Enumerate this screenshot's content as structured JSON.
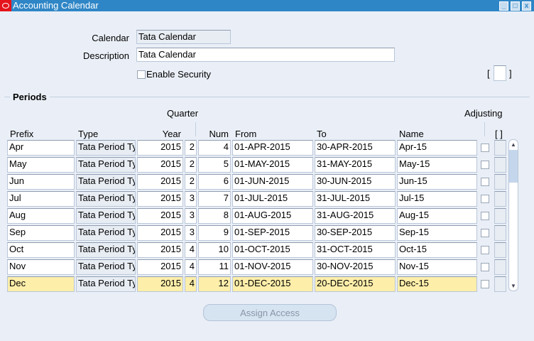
{
  "window": {
    "title": "Accounting Calendar",
    "minimize": "_",
    "maximize": "□",
    "close": "x"
  },
  "header": {
    "calendar_label": "Calendar",
    "calendar_value": "Tata Calendar",
    "description_label": "Description",
    "description_value": "Tata Calendar",
    "enable_security_label": "Enable Security",
    "enable_security_checked": false,
    "flex_open": "[",
    "flex_close": "]"
  },
  "periods": {
    "section_title": "Periods",
    "columns": {
      "prefix": "Prefix",
      "type": "Type",
      "year": "Year",
      "quarter": "Quarter",
      "num": "Num",
      "from": "From",
      "to": "To",
      "name": "Name",
      "adjusting": "Adjusting",
      "flex": "[ ]"
    },
    "rows": [
      {
        "prefix": "Apr",
        "type": "Tata Period Ty",
        "year": "2015",
        "quarter": "2",
        "num": "4",
        "from": "01-APR-2015",
        "to": "30-APR-2015",
        "name": "Apr-15",
        "adjusting": false
      },
      {
        "prefix": "May",
        "type": "Tata Period Ty",
        "year": "2015",
        "quarter": "2",
        "num": "5",
        "from": "01-MAY-2015",
        "to": "31-MAY-2015",
        "name": "May-15",
        "adjusting": false
      },
      {
        "prefix": "Jun",
        "type": "Tata Period Ty",
        "year": "2015",
        "quarter": "2",
        "num": "6",
        "from": "01-JUN-2015",
        "to": "30-JUN-2015",
        "name": "Jun-15",
        "adjusting": false
      },
      {
        "prefix": "Jul",
        "type": "Tata Period Ty",
        "year": "2015",
        "quarter": "3",
        "num": "7",
        "from": "01-JUL-2015",
        "to": "31-JUL-2015",
        "name": "Jul-15",
        "adjusting": false
      },
      {
        "prefix": "Aug",
        "type": "Tata Period Ty",
        "year": "2015",
        "quarter": "3",
        "num": "8",
        "from": "01-AUG-2015",
        "to": "31-AUG-2015",
        "name": "Aug-15",
        "adjusting": false
      },
      {
        "prefix": "Sep",
        "type": "Tata Period Ty",
        "year": "2015",
        "quarter": "3",
        "num": "9",
        "from": "01-SEP-2015",
        "to": "30-SEP-2015",
        "name": "Sep-15",
        "adjusting": false
      },
      {
        "prefix": "Oct",
        "type": "Tata Period Ty",
        "year": "2015",
        "quarter": "4",
        "num": "10",
        "from": "01-OCT-2015",
        "to": "31-OCT-2015",
        "name": "Oct-15",
        "adjusting": false
      },
      {
        "prefix": "Nov",
        "type": "Tata Period Ty",
        "year": "2015",
        "quarter": "4",
        "num": "11",
        "from": "01-NOV-2015",
        "to": "30-NOV-2015",
        "name": "Nov-15",
        "adjusting": false
      },
      {
        "prefix": "Dec",
        "type": "Tata Period Ty",
        "year": "2015",
        "quarter": "4",
        "num": "12",
        "from": "01-DEC-2015",
        "to": "20-DEC-2015",
        "name": "Dec-15",
        "adjusting": false
      }
    ],
    "selected_row": 8
  },
  "footer": {
    "assign_access": "Assign Access"
  },
  "colors": {
    "titlebar": "#2f86c6",
    "selected": "#fdeeaa",
    "background": "#eaeff7"
  }
}
